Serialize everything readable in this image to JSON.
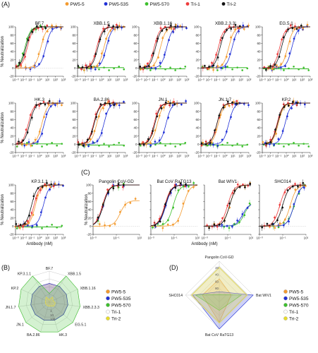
{
  "colors": {
    "PW5-5": "#f39a2e",
    "PW5-535": "#1f2fd6",
    "PW5-570": "#3cbf2c",
    "Tri-1": "#ee3b3b",
    "Tri-2": "#111111",
    "reg-Tri-1": "#cccccc",
    "reg-Tri-2": "#e8dc2a"
  },
  "panel_labels": {
    "A": "(A)",
    "B": "(B)",
    "C": "(C)",
    "D": "(D)"
  },
  "top_legend": [
    "PW5-5",
    "PW5-535",
    "PW5-570",
    "Tri-1",
    "Tri-2"
  ],
  "radar_legend": [
    "PW5-5",
    "PW5-535",
    "PW5-570",
    "Tri-1",
    "Tri-2"
  ],
  "axes_text": {
    "ylabel": "% Neutralization",
    "xlabel": "Antibody (nM)"
  },
  "chart_data": [
    {
      "type": "line",
      "id": "A",
      "x_scale": "log",
      "xlim": [
        0.001,
        1000
      ],
      "ylim": [
        -20,
        100
      ],
      "yticks": [
        -20,
        0,
        20,
        40,
        60,
        80,
        100
      ],
      "xticks": [
        "10⁻³",
        "10⁻²",
        "10⁻¹",
        "10⁰",
        "10¹",
        "10²",
        "10³"
      ],
      "note": "curves shown by ic50 (nM); null = no neutralization",
      "panels": [
        {
          "title": "BF.7",
          "ic50": {
            "PW5-5": 1.5,
            "PW5-535": 6,
            "PW5-570": 0.015,
            "Tri-1": 0.03,
            "Tri-2": 0.02
          }
        },
        {
          "title": "XBB.1.5",
          "ic50": {
            "PW5-5": 2,
            "PW5-535": 4,
            "PW5-570": null,
            "Tri-1": 0.25,
            "Tri-2": 0.35
          }
        },
        {
          "title": "XBB.1.16",
          "ic50": {
            "PW5-5": 0.5,
            "PW5-535": 3,
            "PW5-570": null,
            "Tri-1": 0.08,
            "Tri-2": 0.12
          }
        },
        {
          "title": "XBB.2.3.3",
          "ic50": {
            "PW5-5": 3,
            "PW5-535": 8,
            "PW5-570": null,
            "Tri-1": 0.15,
            "Tri-2": 0.25
          }
        },
        {
          "title": "EG.5.1",
          "ic50": {
            "PW5-5": 1.5,
            "PW5-535": 5,
            "PW5-570": null,
            "Tri-1": 0.15,
            "Tri-2": 0.25
          }
        },
        {
          "title": "HK.3",
          "ic50": {
            "PW5-5": 2,
            "PW5-535": 4,
            "PW5-570": null,
            "Tri-1": 0.04,
            "Tri-2": 0.06
          }
        },
        {
          "title": "BA.2.86",
          "ic50": {
            "PW5-5": 0.25,
            "PW5-535": 2,
            "PW5-570": null,
            "Tri-1": 0.1,
            "Tri-2": 0.12
          }
        },
        {
          "title": "JN.1",
          "ic50": {
            "PW5-5": 0.2,
            "PW5-535": 2.5,
            "PW5-570": null,
            "Tri-1": 0.08,
            "Tri-2": 0.1
          }
        },
        {
          "title": "JN.1.7",
          "ic50": {
            "PW5-5": 0.15,
            "PW5-535": 3,
            "PW5-570": null,
            "Tri-1": 0.1,
            "Tri-2": 0.1
          }
        },
        {
          "title": "KP.2",
          "ic50": {
            "PW5-5": 0.1,
            "PW5-535": 0.7,
            "PW5-570": null,
            "Tri-1": 0.07,
            "Tri-2": 0.08
          }
        },
        {
          "title": "KP.3.1.1",
          "ic50": {
            "PW5-5": 0.3,
            "PW5-535": 3,
            "PW5-570": null,
            "Tri-1": 0.2,
            "Tri-2": 0.1
          }
        }
      ]
    },
    {
      "type": "line",
      "id": "C",
      "x_scale": "log",
      "xlim": [
        0.001,
        100
      ],
      "ylim": [
        -20,
        100
      ],
      "yticks": [
        -20,
        0,
        20,
        40,
        60,
        80,
        100
      ],
      "xticks": [
        "10⁻³",
        "10⁻¹",
        "10¹"
      ],
      "panels": [
        {
          "title": "Pangolin CoV-GD",
          "ic50": {
            "PW5-5": 0.8,
            "PW5-535": 0.012,
            "PW5-570": 0.012,
            "Tri-1": 0.01,
            "Tri-2": 0.012
          },
          "top": {
            "PW5-5": 62
          }
        },
        {
          "title": "Bat CoV RaTG13",
          "ic50": {
            "PW5-5": 3,
            "PW5-535": 0.04,
            "PW5-570": 0.25,
            "Tri-1": 0.03,
            "Tri-2": 0.035
          }
        },
        {
          "title": "Bat WIV1",
          "ic50": {
            "PW5-5": 0.5,
            "PW5-535": 12,
            "PW5-570": 20,
            "Tri-1": 0.3,
            "Tri-2": 0.5
          },
          "top": {
            "PW5-535": 55,
            "PW5-570": 60
          }
        },
        {
          "title": "SHC014",
          "ic50": {
            "PW5-5": 2,
            "PW5-535": 5,
            "PW5-570": 5,
            "Tri-1": 0.15,
            "Tri-2": 0.3
          }
        }
      ]
    },
    {
      "type": "radar",
      "id": "B",
      "scale": "log IC50 (nM)",
      "rticks": [
        "1",
        "10",
        "100"
      ],
      "axes": [
        "BF.7",
        "XBB.1.5",
        "XBB.1.16",
        "XBB.2.3.3",
        "EG.5.1",
        "HK.3",
        "BA.2.86",
        "JN.1",
        "JN.1.7",
        "KP.2",
        "KP.3.1.1"
      ],
      "series": [
        {
          "name": "PW5-5",
          "values": [
            15,
            15,
            15,
            15,
            15,
            15,
            15,
            15,
            15,
            15,
            15
          ]
        },
        {
          "name": "PW5-535",
          "values": [
            15,
            15,
            15,
            15,
            15,
            15,
            15,
            15,
            15,
            15,
            15
          ]
        },
        {
          "name": "PW5-570",
          "values": [
            1,
            400,
            400,
            400,
            400,
            400,
            400,
            400,
            400,
            400,
            400
          ]
        },
        {
          "name": "Tri-1",
          "values": [
            0.2,
            0.5,
            0.3,
            0.5,
            0.5,
            0.3,
            0.3,
            0.3,
            0.3,
            0.3,
            0.5
          ]
        },
        {
          "name": "Tri-2",
          "values": [
            0.2,
            0.5,
            0.3,
            0.5,
            0.5,
            0.3,
            0.3,
            0.3,
            0.3,
            0.3,
            0.5
          ]
        }
      ]
    },
    {
      "type": "radar",
      "id": "D",
      "scale": "IC50 (nM)",
      "rticks": [
        "20",
        "40",
        "60",
        "80"
      ],
      "axes": [
        "Pangolin CoV-GD",
        "Bat WIV1",
        "Bat CoV RaTG13",
        "SHC014"
      ],
      "series": [
        {
          "name": "PW5-5",
          "values": [
            48,
            35,
            80,
            50
          ]
        },
        {
          "name": "PW5-535",
          "values": [
            10,
            100,
            100,
            78
          ]
        },
        {
          "name": "PW5-570",
          "values": [
            2,
            65,
            45,
            70
          ]
        },
        {
          "name": "Tri-1",
          "values": [
            85,
            85,
            85,
            85
          ]
        },
        {
          "name": "Tri-2",
          "values": [
            82,
            82,
            82,
            82
          ]
        }
      ]
    }
  ]
}
